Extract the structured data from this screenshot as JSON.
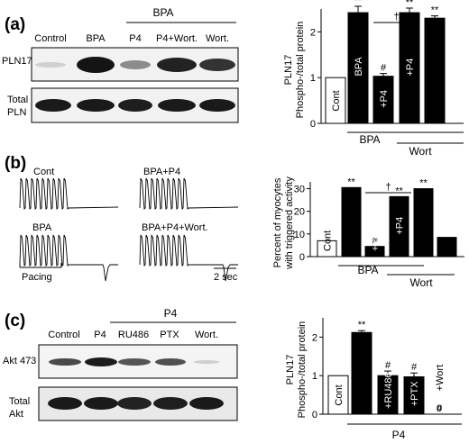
{
  "panel_a": {
    "label": "(a)",
    "blot": {
      "group_label": "BPA",
      "lanes": [
        "Control",
        "BPA",
        "P4",
        "P4+Wort.",
        "Wort."
      ],
      "row1": "PLN17",
      "row2_line1": "Total",
      "row2_line2": "PLN"
    }
  },
  "panel_b": {
    "label": "(b)",
    "traces": {
      "cont": "Cont",
      "bpa_p4": "BPA+P4",
      "bpa": "BPA",
      "bpa_p4_wort": "BPA+P4+Wort.",
      "pacing": "Pacing",
      "scale": "2 sec"
    }
  },
  "panel_c": {
    "label": "(c)",
    "blot": {
      "group_label": "P4",
      "lanes": [
        "Control",
        "P4",
        "RU486",
        "PTX",
        "Wort."
      ],
      "row1": "Akt 473",
      "row2_line1": "Total",
      "row2_line2": "Akt"
    }
  },
  "chart_data": [
    {
      "type": "bar",
      "ylabel_line1": "PLN17",
      "ylabel_line2": "Phospho-/total protein",
      "ylim": [
        0,
        2.5
      ],
      "yticks": [
        0,
        1,
        2
      ],
      "categories": [
        "Cont",
        "BPA",
        "+P4",
        "+P4",
        ""
      ],
      "values": [
        1.0,
        2.42,
        1.03,
        2.42,
        2.3
      ],
      "errors": [
        0.0,
        0.14,
        0.06,
        0.1,
        0.05
      ],
      "fill": [
        "white",
        "black",
        "black",
        "black",
        "black"
      ],
      "marks": [
        "",
        "**",
        "#",
        "**",
        "**"
      ],
      "bracket_label": "†",
      "group_labels": [
        "BPA",
        "Wort"
      ]
    },
    {
      "type": "bar",
      "ylabel_line1": "Percent of myocytes",
      "ylabel_line2": "with triggered activity",
      "ylim": [
        0,
        33
      ],
      "yticks": [
        0,
        10,
        20,
        30
      ],
      "categories": [
        "Cont",
        "",
        "+P4",
        "+P4",
        "",
        ""
      ],
      "values": [
        7,
        30.5,
        4.5,
        26.5,
        30,
        8.5
      ],
      "fill": [
        "white",
        "black",
        "black",
        "black",
        "black",
        "black"
      ],
      "marks": [
        "",
        "**",
        "#",
        "**",
        "**",
        ""
      ],
      "bracket_label": "†",
      "group_labels": [
        "BPA",
        "Wort"
      ]
    },
    {
      "type": "bar",
      "ylabel_line1": "PLN17",
      "ylabel_line2": "Phospho-/total protein",
      "ylim": [
        0,
        2.5
      ],
      "yticks": [
        0,
        1,
        2
      ],
      "categories": [
        "Cont",
        "",
        "+RU486",
        "+PTX",
        "+Wort"
      ],
      "values": [
        1.0,
        2.12,
        1.0,
        0.97,
        0
      ],
      "errors": [
        0.0,
        0.05,
        0.12,
        0.1,
        0.0
      ],
      "fill": [
        "white",
        "black",
        "black",
        "black",
        "black"
      ],
      "marks": [
        "",
        "**",
        "#",
        "#",
        "#"
      ],
      "zero_label": "0",
      "group_labels": [
        "P4"
      ]
    }
  ]
}
